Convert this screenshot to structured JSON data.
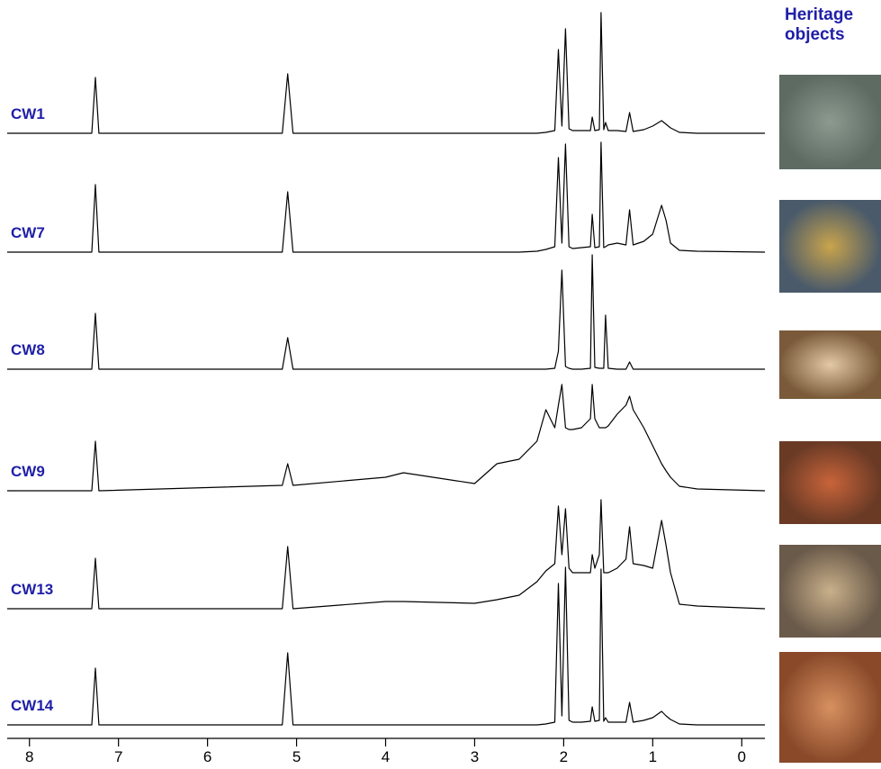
{
  "chart_data": {
    "type": "line",
    "title": "Heritage objects",
    "x": [
      8.25,
      7.3,
      7.26,
      7.22,
      5.16,
      5.1,
      5.04,
      4.0,
      3.8,
      3.0,
      2.75,
      2.5,
      2.3,
      2.2,
      2.1,
      2.06,
      2.02,
      1.98,
      1.94,
      1.9,
      1.8,
      1.7,
      1.68,
      1.65,
      1.6,
      1.58,
      1.55,
      1.53,
      1.5,
      1.4,
      1.3,
      1.26,
      1.22,
      1.1,
      1.0,
      0.9,
      0.85,
      0.8,
      0.7,
      0.5,
      -0.26
    ],
    "series": [
      {
        "name": "CW1",
        "color": "#000000",
        "values": [
          0,
          0,
          62,
          0,
          0,
          66,
          0,
          0,
          0,
          0,
          0,
          0,
          0,
          1,
          3,
          93,
          8,
          116,
          5,
          3,
          3,
          3,
          18,
          3,
          4,
          134,
          4,
          12,
          3,
          3,
          2,
          23,
          2,
          4,
          8,
          14,
          10,
          6,
          1,
          0,
          0
        ]
      },
      {
        "name": "CW7",
        "color": "#000000",
        "values": [
          0,
          0,
          75,
          0,
          0,
          67,
          0,
          0,
          0,
          0,
          0,
          0,
          1,
          3,
          6,
          105,
          10,
          120,
          6,
          4,
          5,
          6,
          42,
          5,
          6,
          122,
          5,
          6,
          8,
          10,
          8,
          47,
          8,
          12,
          20,
          52,
          35,
          10,
          2,
          1,
          0
        ]
      },
      {
        "name": "CW8",
        "color": "#000000",
        "values": [
          0,
          0,
          62,
          0,
          0,
          35,
          0,
          0,
          0,
          0,
          0,
          0,
          0,
          0,
          1,
          20,
          110,
          3,
          1,
          0,
          0,
          1,
          127,
          2,
          1,
          1,
          1,
          60,
          1,
          0,
          0,
          8,
          0,
          0,
          0,
          0,
          0,
          0,
          0,
          0,
          0
        ]
      },
      {
        "name": "CW9",
        "color": "#000000",
        "values": [
          0,
          0,
          55,
          0,
          6,
          30,
          6,
          15,
          20,
          8,
          30,
          35,
          55,
          90,
          70,
          95,
          118,
          70,
          68,
          68,
          70,
          80,
          118,
          80,
          70,
          70,
          70,
          70,
          72,
          85,
          95,
          105,
          90,
          70,
          50,
          30,
          22,
          15,
          5,
          2,
          0
        ]
      },
      {
        "name": "CW13",
        "color": "#000000",
        "values": [
          0,
          0,
          56,
          0,
          0,
          69,
          0,
          8,
          8,
          6,
          10,
          15,
          30,
          42,
          50,
          114,
          60,
          111,
          45,
          40,
          40,
          40,
          60,
          45,
          60,
          121,
          40,
          40,
          40,
          45,
          55,
          91,
          50,
          48,
          45,
          98,
          70,
          40,
          5,
          3,
          0
        ]
      },
      {
        "name": "CW14",
        "color": "#000000",
        "values": [
          0,
          0,
          63,
          0,
          0,
          80,
          0,
          0,
          0,
          0,
          0,
          0,
          0,
          1,
          3,
          157,
          10,
          175,
          5,
          3,
          3,
          4,
          20,
          4,
          5,
          173,
          4,
          8,
          3,
          3,
          3,
          25,
          3,
          5,
          8,
          15,
          10,
          6,
          1,
          0,
          0
        ]
      }
    ],
    "xlim": [
      8.25,
      -0.26
    ],
    "xticks": [
      8,
      7,
      6,
      5,
      4,
      3,
      2,
      1,
      0
    ],
    "ylim": [
      0,
      180
    ]
  }
}
